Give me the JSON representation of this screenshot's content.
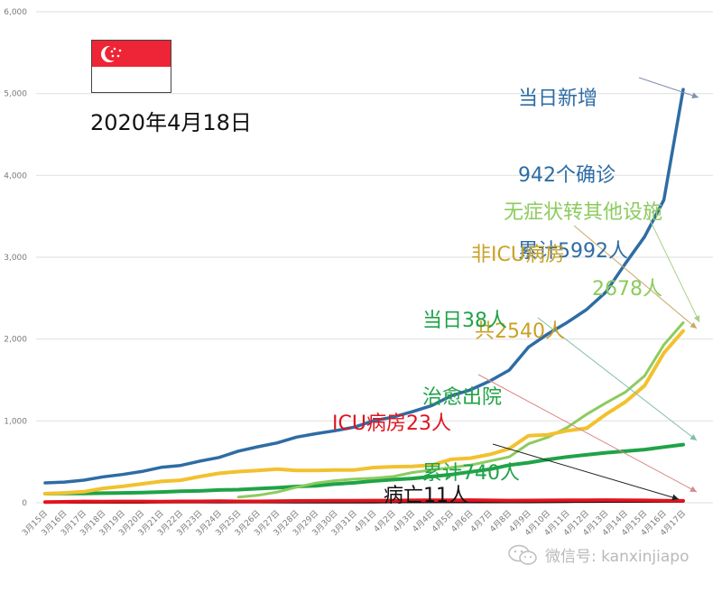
{
  "header": {
    "date": "2020年4月18日",
    "flag": "singapore-flag"
  },
  "colors": {
    "confirmed": "#2e6ca4",
    "non_icu": "#f2c12e",
    "asymptomatic": "#8ccb5e",
    "discharged": "#1fa347",
    "icu": "#e0141e",
    "deaths": "#000000",
    "flag_red": "#ee2536",
    "grid": "#e3e3e3",
    "anno_non_icu": "#c9a227",
    "anno_asym": "#8ccb5e",
    "anno_discharged": "#1fa347"
  },
  "annotations": {
    "confirmed": [
      "当日新增",
      "942个确诊",
      "累计5992人"
    ],
    "asymptomatic": [
      "无症状转其他设施",
      "2678人"
    ],
    "non_icu": [
      "非ICU病房",
      "共2540人"
    ],
    "discharged": [
      "当日38人",
      "治愈出院",
      "累计740人"
    ],
    "icu": [
      "ICU病房23人"
    ],
    "deaths": [
      "病亡11人"
    ]
  },
  "watermark": {
    "icon": "wechat-icon",
    "text": "微信号: kanxinjiapo"
  },
  "chart_data": {
    "type": "line",
    "title": "",
    "xlabel": "",
    "ylabel": "",
    "ylim": [
      0,
      6000
    ],
    "yticks": [
      0,
      1000,
      2000,
      3000,
      4000,
      5000,
      6000
    ],
    "ytick_labels": [
      "0",
      "1,000",
      "2,000",
      "3,000",
      "4,000",
      "5,000",
      "6,000"
    ],
    "grid": true,
    "legend": "none",
    "categories": [
      "3月15日",
      "3月16日",
      "3月17日",
      "3月18日",
      "3月19日",
      "3月20日",
      "3月21日",
      "3月22日",
      "3月23日",
      "3月24日",
      "3月25日",
      "3月26日",
      "3月27日",
      "3月28日",
      "3月29日",
      "3月30日",
      "3月31日",
      "4月1日",
      "4月2日",
      "4月3日",
      "4月4日",
      "4月5日",
      "4月6日",
      "4月7日",
      "4月8日",
      "4月9日",
      "4月10日",
      "4月11日",
      "4月12日",
      "4月13日",
      "4月14日",
      "4月15日",
      "4月16日",
      "4月17日"
    ],
    "series": [
      {
        "name": "确诊累计",
        "key": "confirmed",
        "values": [
          243,
          253,
          276,
          317,
          345,
          382,
          432,
          456,
          508,
          554,
          631,
          684,
          731,
          802,
          844,
          880,
          924,
          1003,
          1047,
          1113,
          1188,
          1306,
          1380,
          1488,
          1620,
          1902,
          2063,
          2204,
          2360,
          2573,
          2920,
          3250,
          3700,
          5050
        ]
      },
      {
        "name": "非ICU病房",
        "key": "non_icu",
        "values": [
          110,
          120,
          135,
          175,
          200,
          230,
          260,
          275,
          320,
          360,
          380,
          395,
          410,
          395,
          395,
          400,
          400,
          430,
          440,
          445,
          460,
          530,
          545,
          590,
          660,
          820,
          830,
          880,
          910,
          1080,
          1230,
          1430,
          1830,
          2100
        ]
      },
      {
        "name": "无症状转其他设施",
        "key": "asymptomatic",
        "values": [
          null,
          null,
          null,
          null,
          null,
          null,
          null,
          null,
          null,
          null,
          70,
          90,
          130,
          190,
          240,
          270,
          290,
          300,
          320,
          370,
          400,
          430,
          460,
          510,
          560,
          720,
          800,
          920,
          1080,
          1220,
          1350,
          1550,
          1930,
          2200
        ]
      },
      {
        "name": "治愈出院",
        "key": "discharged",
        "values": [
          110,
          112,
          114,
          117,
          120,
          124,
          131,
          140,
          144,
          156,
          160,
          172,
          183,
          198,
          207,
          228,
          244,
          266,
          282,
          297,
          320,
          344,
          377,
          409,
          460,
          490,
          528,
          560,
          586,
          611,
          630,
          650,
          680,
          710
        ]
      },
      {
        "name": "ICU病房",
        "key": "icu",
        "values": [
          9,
          11,
          15,
          14,
          15,
          15,
          14,
          17,
          17,
          19,
          17,
          17,
          19,
          22,
          23,
          24,
          24,
          26,
          27,
          29,
          31,
          30,
          32,
          29,
          27,
          28,
          29,
          31,
          31,
          32,
          30,
          29,
          25,
          23
        ]
      },
      {
        "name": "病亡",
        "key": "deaths",
        "values": [
          0,
          0,
          0,
          0,
          0,
          0,
          2,
          2,
          2,
          2,
          2,
          2,
          2,
          2,
          3,
          3,
          3,
          3,
          5,
          6,
          6,
          6,
          6,
          6,
          6,
          6,
          7,
          9,
          10,
          11,
          11,
          11,
          11,
          11
        ]
      }
    ]
  }
}
